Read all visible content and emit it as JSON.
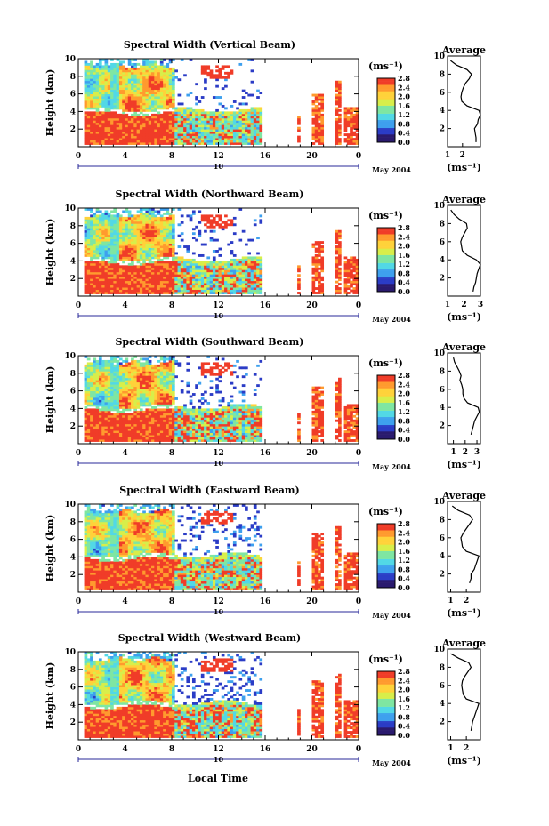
{
  "figure": {
    "xlabel": "Local Time",
    "colorbar_unit": "(ms⁻¹)",
    "colorbar_ticks": [
      "0.0",
      "0.4",
      "0.8",
      "1.2",
      "1.6",
      "2.0",
      "2.4",
      "2.8"
    ],
    "date_label": "May 2004",
    "day_label": "10",
    "avg_title": "Average",
    "avg_unit": "(ms⁻¹)"
  },
  "chart_data": [
    {
      "type": "heatmap",
      "title": "Spectral Width (Vertical Beam)",
      "ylabel": "Height (km)",
      "xlim": [
        0,
        24
      ],
      "ylim": [
        0,
        10
      ],
      "xticks": [
        "0",
        "4",
        "8",
        "12",
        "16",
        "20",
        "0"
      ],
      "yticks": [
        "2",
        "4",
        "6",
        "8",
        "10"
      ],
      "colorscale": [
        "#2a1a6e",
        "#2b3cc6",
        "#3ea0ee",
        "#52d8e6",
        "#7fe6a2",
        "#d8ee4a",
        "#ffd23a",
        "#ff9a2e",
        "#f03c28"
      ],
      "profile": {
        "xlabel": "(ms⁻¹)",
        "xticks": [
          "1",
          "2"
        ],
        "xlim": [
          1,
          3.2
        ],
        "ylim": [
          0,
          10
        ],
        "yticks": [
          "2",
          "4",
          "6",
          "8",
          "10"
        ],
        "height": [
          0.5,
          1,
          1.5,
          2,
          2.5,
          3,
          3.5,
          4,
          4.5,
          5,
          5.5,
          6,
          6.5,
          7,
          7.5,
          8,
          8.5,
          9,
          9.5
        ],
        "value": [
          2.9,
          2.9,
          2.85,
          2.8,
          3.0,
          3.05,
          3.2,
          3.1,
          2.3,
          1.95,
          1.9,
          1.95,
          2.05,
          2.2,
          2.45,
          2.6,
          2.3,
          1.6,
          1.2
        ]
      }
    },
    {
      "type": "heatmap",
      "title": "Spectral Width (Northward Beam)",
      "ylabel": "Height (km)",
      "xlim": [
        0,
        24
      ],
      "ylim": [
        0,
        10
      ],
      "xticks": [
        "0",
        "4",
        "8",
        "12",
        "16",
        "20",
        "0"
      ],
      "yticks": [
        "2",
        "4",
        "6",
        "8",
        "10"
      ],
      "profile": {
        "xlabel": "(ms⁻¹)",
        "xticks": [
          "1",
          "2",
          "3"
        ],
        "xlim": [
          1,
          3
        ],
        "ylim": [
          0,
          10
        ],
        "yticks": [
          "2",
          "4",
          "6",
          "8",
          "10"
        ],
        "height": [
          0.5,
          1,
          1.5,
          2,
          2.5,
          3,
          3.5,
          4,
          4.5,
          5,
          5.5,
          6,
          6.5,
          7,
          7.5,
          8,
          8.5,
          9,
          9.5
        ],
        "value": [
          2.55,
          2.6,
          2.7,
          2.75,
          2.8,
          2.9,
          3.0,
          2.75,
          2.2,
          1.9,
          1.85,
          1.8,
          1.9,
          2.05,
          2.2,
          2.15,
          1.7,
          1.4,
          1.2
        ]
      }
    },
    {
      "type": "heatmap",
      "title": "Spectral Width (Southward Beam)",
      "ylabel": "Height (km)",
      "xlim": [
        0,
        24
      ],
      "ylim": [
        0,
        10
      ],
      "xticks": [
        "0",
        "4",
        "8",
        "12",
        "16",
        "20",
        "0"
      ],
      "yticks": [
        "2",
        "4",
        "6",
        "8",
        "10"
      ],
      "profile": {
        "xlabel": "(ms⁻¹)",
        "xticks": [
          "1",
          "2",
          "3"
        ],
        "xlim": [
          0.5,
          3.3
        ],
        "ylim": [
          0,
          10
        ],
        "yticks": [
          "2",
          "4",
          "6",
          "8",
          "10"
        ],
        "height": [
          1,
          1.5,
          2,
          2.5,
          3,
          3.5,
          4,
          4.5,
          5,
          5.5,
          6,
          6.5,
          7,
          7.5,
          8,
          8.5,
          9,
          9.5
        ],
        "value": [
          2.5,
          2.6,
          2.7,
          2.8,
          3.0,
          3.2,
          3.1,
          2.2,
          1.9,
          1.8,
          1.8,
          1.7,
          1.55,
          1.65,
          1.5,
          1.3,
          1.1,
          1.0
        ]
      }
    },
    {
      "type": "heatmap",
      "title": "Spectral Width (Eastward Beam)",
      "ylabel": "Height (km)",
      "xlim": [
        0,
        24
      ],
      "ylim": [
        0,
        10
      ],
      "xticks": [
        "0",
        "4",
        "8",
        "12",
        "16",
        "20",
        "0"
      ],
      "yticks": [
        "2",
        "4",
        "6",
        "8",
        "10"
      ],
      "profile": {
        "xlabel": "(ms⁻¹)",
        "xticks": [
          "1",
          "2"
        ],
        "xlim": [
          0.8,
          2.9
        ],
        "ylim": [
          0,
          10
        ],
        "yticks": [
          "2",
          "4",
          "6",
          "8",
          "10"
        ],
        "height": [
          1,
          1.5,
          2,
          2.5,
          3,
          3.5,
          4,
          4.5,
          5,
          5.5,
          6,
          6.5,
          7,
          7.5,
          8,
          8.5,
          9,
          9.5
        ],
        "value": [
          2.2,
          2.3,
          2.3,
          2.5,
          2.6,
          2.7,
          2.8,
          2.0,
          1.75,
          1.7,
          1.65,
          1.8,
          2.0,
          2.2,
          2.4,
          2.2,
          1.5,
          1.1
        ]
      }
    },
    {
      "type": "heatmap",
      "title": "Spectral Width (Westward Beam)",
      "ylabel": "Height (km)",
      "xlim": [
        0,
        24
      ],
      "ylim": [
        0,
        10
      ],
      "xticks": [
        "0",
        "4",
        "8",
        "12",
        "16",
        "20",
        "0"
      ],
      "yticks": [
        "2",
        "4",
        "6",
        "8",
        "10"
      ],
      "profile": {
        "xlabel": "(ms⁻¹)",
        "xticks": [
          "1",
          "2"
        ],
        "xlim": [
          0.8,
          2.9
        ],
        "ylim": [
          0,
          10
        ],
        "yticks": [
          "2",
          "4",
          "6",
          "8",
          "10"
        ],
        "height": [
          1,
          1.5,
          2,
          2.5,
          3,
          3.5,
          4,
          4.5,
          5,
          5.5,
          6,
          6.5,
          7,
          7.5,
          8,
          8.5,
          9,
          9.5
        ],
        "value": [
          2.3,
          2.35,
          2.4,
          2.5,
          2.6,
          2.7,
          2.8,
          2.0,
          1.8,
          1.75,
          1.7,
          1.75,
          1.9,
          2.1,
          2.3,
          2.15,
          1.5,
          1.0
        ]
      }
    }
  ]
}
